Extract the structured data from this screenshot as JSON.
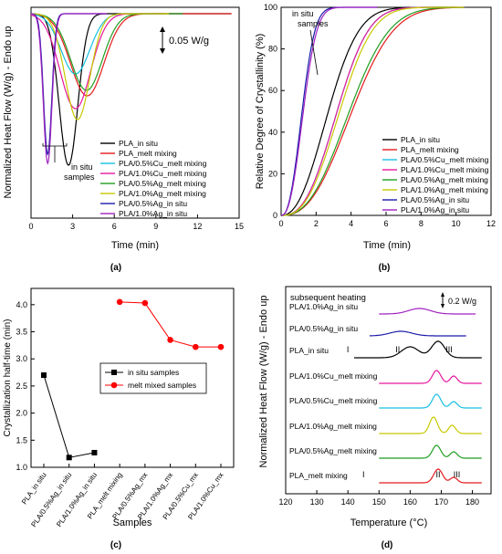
{
  "chart_data": [
    {
      "id": "a",
      "type": "line",
      "panel_label": "(a)",
      "xlabel": "Time (min)",
      "ylabel": "Normalized Heat Flow (W/g) - Endo up",
      "xlim": [
        0,
        15
      ],
      "x_ticks": [
        0,
        3,
        6,
        9,
        12,
        15
      ],
      "scale_bar_label": "0.05 W/g",
      "annotation": "in situ\nsamples",
      "series": [
        {
          "name": "PLA_in situ",
          "color": "#000000",
          "peak_time": 2.7,
          "depth": 0.83,
          "width": 0.95,
          "end_time": 14.5
        },
        {
          "name": "PLA_melt mixing",
          "color": "#e41a1c",
          "peak_time": 4.05,
          "depth": 0.45,
          "width": 1.7,
          "end_time": 14.5
        },
        {
          "name": "PLA/0.5%Cu_melt mixing",
          "color": "#17bfe0",
          "peak_time": 3.2,
          "depth": 0.33,
          "width": 1.45,
          "end_time": 9.5
        },
        {
          "name": "PLA/1.0%Cu_melt mixing",
          "color": "#e6179c",
          "peak_time": 3.2,
          "depth": 0.52,
          "width": 1.55,
          "end_time": 9.5
        },
        {
          "name": "PLA/0.5%Ag_melt mixing",
          "color": "#1f9e1f",
          "peak_time": 4.0,
          "depth": 0.42,
          "width": 1.6,
          "end_time": 11.0
        },
        {
          "name": "PLA/1.0%Ag_melt mixing",
          "color": "#c8c800",
          "peak_time": 3.35,
          "depth": 0.58,
          "width": 1.25,
          "end_time": 10.0
        },
        {
          "name": "PLA/0.5%Ag_in situ",
          "color": "#1a1aaa",
          "peak_time": 1.2,
          "depth": 0.77,
          "width": 0.42,
          "end_time": 5.5
        },
        {
          "name": "PLA/1.0%Ag_in situ",
          "color": "#a020c0",
          "peak_time": 1.2,
          "depth": 0.82,
          "width": 0.44,
          "end_time": 5.5
        }
      ]
    },
    {
      "id": "b",
      "type": "line",
      "panel_label": "(b)",
      "xlabel": "Time (min)",
      "ylabel": "Relative Degree of Crystallinity (%)",
      "xlim": [
        0,
        12
      ],
      "ylim": [
        0,
        100
      ],
      "x_ticks": [
        0,
        2,
        4,
        6,
        8,
        10,
        12
      ],
      "y_ticks": [
        0,
        20,
        40,
        60,
        80,
        100
      ],
      "annotation": "in situ\nsamples",
      "series": [
        {
          "name": "PLA_in situ",
          "color": "#000000",
          "t_half": 2.7,
          "n": 2.3,
          "end_time": 10
        },
        {
          "name": "PLA_melt mixing",
          "color": "#e41a1c",
          "t_half": 4.05,
          "n": 2.5,
          "end_time": 10.5
        },
        {
          "name": "PLA/0.5%Cu_melt mixing",
          "color": "#17bfe0",
          "t_half": 3.2,
          "n": 2.6,
          "end_time": 10.5
        },
        {
          "name": "PLA/1.0%Cu_melt mixing",
          "color": "#e6179c",
          "t_half": 3.2,
          "n": 2.6,
          "end_time": 10.5
        },
        {
          "name": "PLA/0.5%Ag_melt mixing",
          "color": "#1f9e1f",
          "t_half": 3.9,
          "n": 2.5,
          "end_time": 10.5
        },
        {
          "name": "PLA/1.0%Ag_melt mixing",
          "color": "#c8c800",
          "t_half": 3.35,
          "n": 2.6,
          "end_time": 10.5
        },
        {
          "name": "PLA/0.5%Ag_in situ",
          "color": "#1a1aaa",
          "t_half": 1.2,
          "n": 2.4,
          "end_time": 5.5
        },
        {
          "name": "PLA/1.0%Ag_in situ",
          "color": "#a020c0",
          "t_half": 1.27,
          "n": 2.4,
          "end_time": 5.5
        }
      ]
    },
    {
      "id": "c",
      "type": "line",
      "panel_label": "(c)",
      "xlabel": "Samples",
      "ylabel": "Crystallization half-time (min)",
      "ylim": [
        1.0,
        4.3
      ],
      "y_ticks": [
        1.0,
        1.5,
        2.0,
        2.5,
        3.0,
        3.5,
        4.0
      ],
      "categories": [
        "PLA_in situ",
        "PLA/0.5%Ag_in situ",
        "PLA/1.0%Ag_in situ",
        "PLA_melt mixing",
        "PLA/0.5%Ag_mx",
        "PLA/1.0%Ag_mx",
        "PLA/0.5%Cu_mx",
        "PLA/1.0%Cu_mx"
      ],
      "series": [
        {
          "name": "in situ samples",
          "color": "#000000",
          "marker": "square",
          "values": [
            2.7,
            1.18,
            1.27,
            null,
            null,
            null,
            null,
            null
          ]
        },
        {
          "name": "melt mixed samples",
          "color": "#ff0000",
          "marker": "circle",
          "values": [
            null,
            null,
            null,
            4.05,
            4.03,
            3.35,
            3.22,
            3.22
          ]
        }
      ]
    },
    {
      "id": "d",
      "type": "line",
      "panel_label": "(d)",
      "xlabel": "Temperature (°C)",
      "ylabel": "Normalized Heat Flow (W/g) - Endo up",
      "xlim": [
        120,
        186
      ],
      "x_ticks": [
        120,
        130,
        140,
        150,
        160,
        170,
        180
      ],
      "title": "subsequent heating",
      "scale_bar_label": "0.2 W/g",
      "series": [
        {
          "name": "PLA/1.0%Ag_in situ",
          "color": "#a020c0",
          "x_start": 150,
          "x_end": 181,
          "peaks": [
            [
              163,
              6,
              5
            ]
          ]
        },
        {
          "name": "PLA/0.5%Ag_in situ",
          "color": "#1a1aaa",
          "x_start": 147,
          "x_end": 178,
          "peaks": [
            [
              157,
              5,
              5
            ]
          ]
        },
        {
          "name": "PLA_in situ",
          "color": "#000000",
          "x_start": 142,
          "x_end": 183,
          "peaks": [
            [
              160,
              12,
              4
            ],
            [
              169,
              18,
              3
            ]
          ]
        },
        {
          "name": "PLA/1.0%Cu_melt mixing",
          "color": "#e6179c",
          "x_start": 150,
          "x_end": 183,
          "peaks": [
            [
              168.5,
              14,
              1.9
            ],
            [
              174,
              8,
              1.6
            ]
          ]
        },
        {
          "name": "PLA/0.5%Cu_melt mixing",
          "color": "#17bfe0",
          "x_start": 150,
          "x_end": 183,
          "peaks": [
            [
              168.5,
              15,
              1.9
            ],
            [
              174,
              7,
              1.6
            ]
          ]
        },
        {
          "name": "PLA/1.0%Ag_melt mixing",
          "color": "#c8c800",
          "x_start": 150,
          "x_end": 183,
          "peaks": [
            [
              167.5,
              18,
              1.8
            ],
            [
              173.5,
              9,
              1.6
            ]
          ]
        },
        {
          "name": "PLA/0.5%Ag_melt mixing",
          "color": "#1f9e1f",
          "x_start": 150,
          "x_end": 183,
          "peaks": [
            [
              168.5,
              14,
              1.9
            ],
            [
              174,
              7,
              1.6
            ]
          ]
        },
        {
          "name": "PLA_melt mixing",
          "color": "#e41a1c",
          "x_start": 150,
          "x_end": 183,
          "peaks": [
            [
              169,
              15,
              2
            ],
            [
              174,
              6,
              1.6
            ]
          ]
        }
      ],
      "peak_labels": [
        {
          "series": "PLA_in situ",
          "labels": [
            "I",
            "II",
            "III"
          ],
          "temps": [
            140,
            156,
            172.5
          ]
        },
        {
          "series": "PLA_melt mixing",
          "labels": [
            "I",
            "II",
            "III"
          ],
          "temps": [
            145,
            169,
            175
          ]
        }
      ]
    }
  ]
}
